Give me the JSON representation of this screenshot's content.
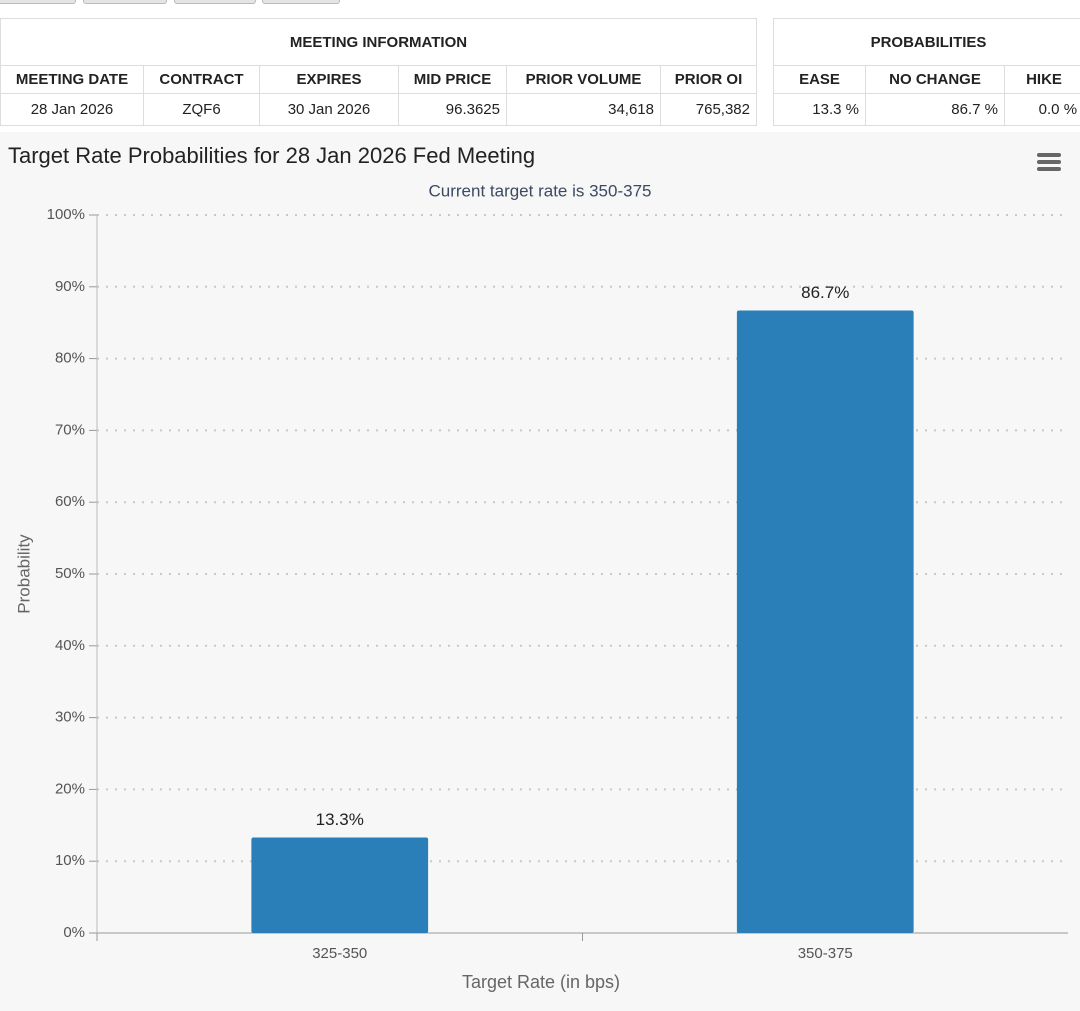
{
  "meeting_information": {
    "title": "MEETING INFORMATION",
    "headers": [
      "MEETING DATE",
      "CONTRACT",
      "EXPIRES",
      "MID PRICE",
      "PRIOR VOLUME",
      "PRIOR OI"
    ],
    "rows": [
      [
        "28 Jan 2026",
        "ZQF6",
        "30 Jan 2026",
        "96.3625",
        "34,618",
        "765,382"
      ]
    ]
  },
  "probabilities": {
    "title": "PROBABILITIES",
    "headers": [
      "EASE",
      "NO CHANGE",
      "HIKE"
    ],
    "rows": [
      [
        "13.3 %",
        "86.7 %",
        "0.0 %"
      ]
    ]
  },
  "chart_data": {
    "type": "bar",
    "title": "Target Rate Probabilities for 28 Jan 2026 Fed Meeting",
    "subtitle": "Current target rate is 350-375",
    "x_label": "Target Rate (in bps)",
    "y_label": "Probability",
    "categories": [
      "325-350",
      "350-375"
    ],
    "values": [
      13.3,
      86.7
    ],
    "value_labels": [
      "13.3%",
      "86.7%"
    ],
    "color": "#2a7fb8",
    "ylim": [
      0,
      100
    ],
    "yticks": [
      {
        "value": 0,
        "label": "0%"
      },
      {
        "value": 10,
        "label": "10%"
      },
      {
        "value": 20,
        "label": "20%"
      },
      {
        "value": 30,
        "label": "30%"
      },
      {
        "value": 40,
        "label": "40%"
      },
      {
        "value": 50,
        "label": "50%"
      },
      {
        "value": 60,
        "label": "60%"
      },
      {
        "value": 70,
        "label": "70%"
      },
      {
        "value": 80,
        "label": "80%"
      },
      {
        "value": 90,
        "label": "90%"
      },
      {
        "value": 100,
        "label": "100%"
      }
    ],
    "grid": true
  }
}
